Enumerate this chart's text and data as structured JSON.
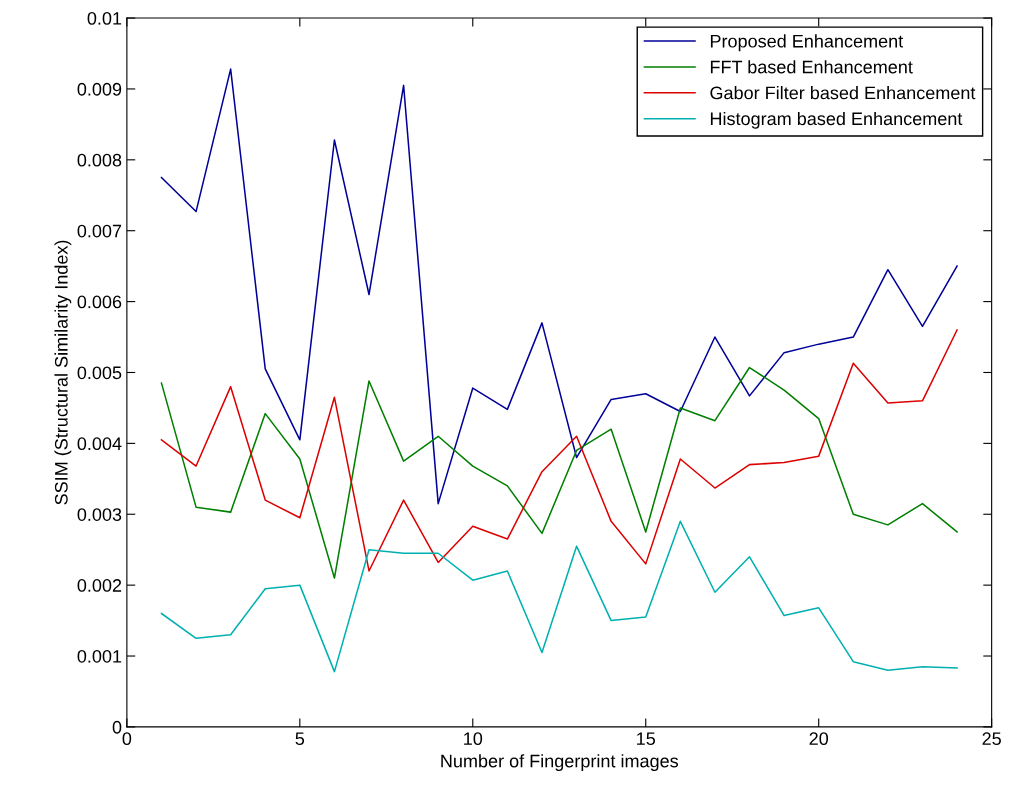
{
  "chart_data": {
    "type": "line",
    "xlabel": "Number of Fingerprint images",
    "ylabel": "SSIM (Structural Similarity Index)",
    "x": [
      1,
      2,
      3,
      4,
      5,
      6,
      7,
      8,
      9,
      10,
      11,
      12,
      13,
      14,
      15,
      16,
      17,
      18,
      19,
      20,
      21,
      22,
      23,
      24
    ],
    "series": [
      {
        "name": "Proposed Enhancement",
        "color": "#000099",
        "values": [
          0.00775,
          0.00727,
          0.00928,
          0.00505,
          0.00405,
          0.00828,
          0.0061,
          0.00905,
          0.00315,
          0.00478,
          0.00448,
          0.0057,
          0.0038,
          0.00462,
          0.0047,
          0.00445,
          0.0055,
          0.00467,
          0.00528,
          0.0054,
          0.0055,
          0.00645,
          0.00565,
          0.0065
        ]
      },
      {
        "name": "FFT based Enhancement",
        "color": "#007f00",
        "values": [
          0.00485,
          0.0031,
          0.00303,
          0.00442,
          0.00378,
          0.0021,
          0.00488,
          0.00375,
          0.0041,
          0.00368,
          0.0034,
          0.00273,
          0.0039,
          0.0042,
          0.00275,
          0.0045,
          0.00432,
          0.00507,
          0.00475,
          0.00435,
          0.003,
          0.00285,
          0.00315,
          0.00275
        ]
      },
      {
        "name": "Gabor Filter based Enhancement",
        "color": "#dd0000",
        "values": [
          0.00405,
          0.00368,
          0.0048,
          0.0032,
          0.00295,
          0.00465,
          0.0022,
          0.0032,
          0.00232,
          0.00283,
          0.00265,
          0.0036,
          0.0041,
          0.0029,
          0.0023,
          0.00378,
          0.00337,
          0.0037,
          0.00373,
          0.00382,
          0.00513,
          0.00457,
          0.0046,
          0.0056
        ]
      },
      {
        "name": "Histogram based Enhancement",
        "color": "#00b0b0",
        "values": [
          0.0016,
          0.00125,
          0.0013,
          0.00195,
          0.002,
          0.00078,
          0.0025,
          0.00245,
          0.00245,
          0.00207,
          0.0022,
          0.00105,
          0.00255,
          0.0015,
          0.00155,
          0.0029,
          0.0019,
          0.0024,
          0.00157,
          0.00168,
          0.00092,
          0.0008,
          0.00085,
          0.00083
        ]
      }
    ],
    "xlim": [
      0,
      25
    ],
    "xticks": [
      0,
      5,
      10,
      15,
      20,
      25
    ],
    "ylim": [
      0,
      0.01
    ],
    "yticks": [
      0,
      0.001,
      0.002,
      0.003,
      0.004,
      0.005,
      0.006,
      0.007,
      0.008,
      0.009,
      0.01
    ],
    "legend": "top right",
    "grid": false,
    "marker": "none",
    "line_style": "solid"
  }
}
